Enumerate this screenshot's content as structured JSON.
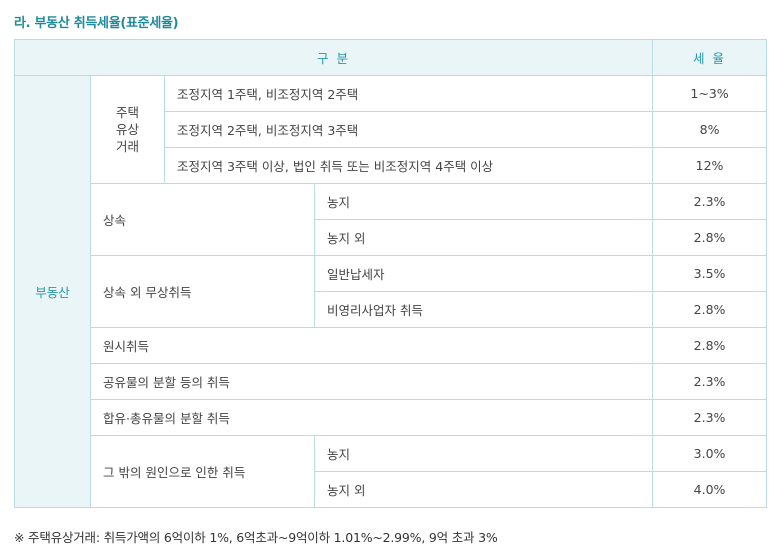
{
  "heading": "라. 부동산 취득세율(표준세율)",
  "table": {
    "header_division": "구 분",
    "header_rate": "세 율",
    "category": "부동산",
    "housing": {
      "label": "주택\n유상\n거래",
      "rows": [
        {
          "desc": "조정지역 1주택, 비조정지역 2주택",
          "rate": "1~3%"
        },
        {
          "desc": "조정지역 2주택, 비조정지역 3주택",
          "rate": "8%"
        },
        {
          "desc": "조정지역 3주택 이상, 법인 취득 또는 비조정지역 4주택 이상",
          "rate": "12%"
        }
      ]
    },
    "inheritance": {
      "label": "상속",
      "rows": [
        {
          "desc": "농지",
          "rate": "2.3%"
        },
        {
          "desc": "농지 외",
          "rate": "2.8%"
        }
      ]
    },
    "gratuitous": {
      "label": "상속 외 무상취득",
      "rows": [
        {
          "desc": "일반납세자",
          "rate": "3.5%"
        },
        {
          "desc": "비영리사업자 취득",
          "rate": "2.8%"
        }
      ]
    },
    "single_rows": [
      {
        "label": "원시취득",
        "rate": "2.8%"
      },
      {
        "label": "공유물의 분할 등의 취득",
        "rate": "2.3%"
      },
      {
        "label": "합유·총유물의 분할 취득",
        "rate": "2.3%"
      }
    ],
    "other": {
      "label": "그 밖의 원인으로 인한 취득",
      "rows": [
        {
          "desc": "농지",
          "rate": "3.0%"
        },
        {
          "desc": "농지 외",
          "rate": "4.0%"
        }
      ]
    }
  },
  "note": "※ 주택유상거래: 취득가액의 6억이하 1%, 6억초과~9억이하 1.01%~2.99%, 9억 초과 3%"
}
